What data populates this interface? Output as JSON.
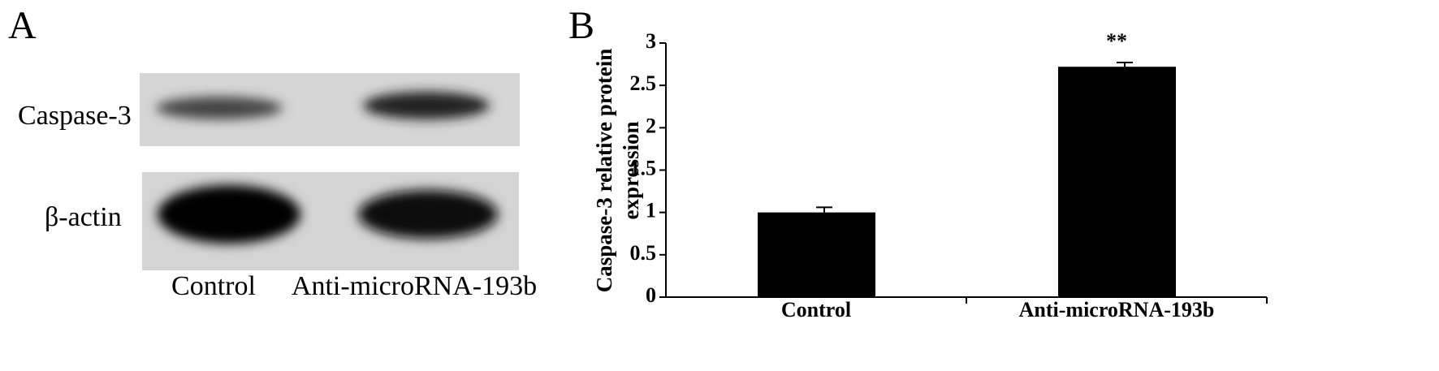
{
  "blot": {
    "panel_label": "A",
    "rows": [
      "Caspase-3",
      "β-actin"
    ],
    "lanes": [
      "Control",
      "Anti-microRNA-193b"
    ]
  },
  "chart_data": {
    "type": "bar",
    "panel_label": "B",
    "ylabel": [
      "Caspase-3 relative protein",
      "expression"
    ],
    "categories": [
      "Control",
      "Anti-microRNA-193b"
    ],
    "values": [
      1.0,
      2.72
    ],
    "errors": [
      0.06,
      0.05
    ],
    "color": "#000000",
    "annotations": [
      {
        "category": "Anti-microRNA-193b",
        "text": "**"
      }
    ],
    "ylim": [
      0,
      3
    ],
    "yticks": [
      0,
      0.5,
      1,
      1.5,
      2,
      2.5,
      3
    ],
    "grid": false
  }
}
